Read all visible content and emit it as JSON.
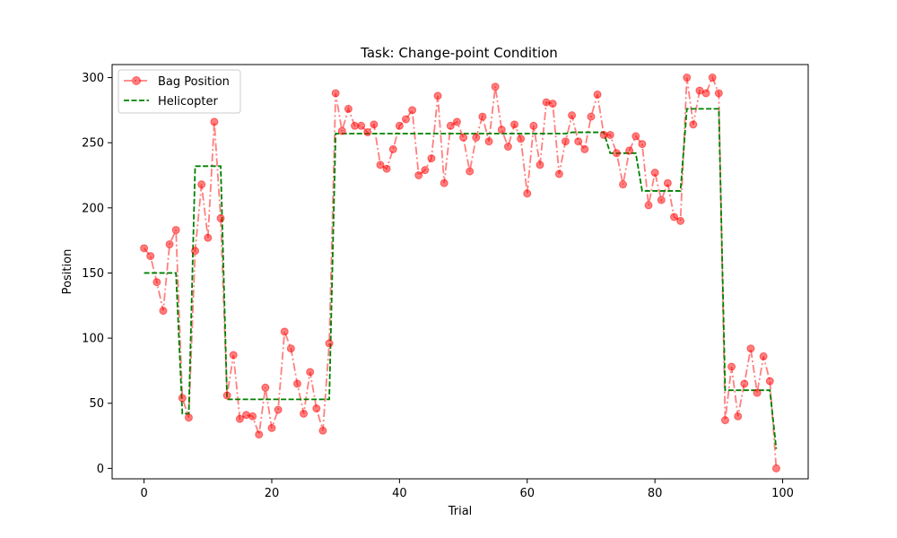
{
  "chart_data": {
    "type": "line",
    "title": "Task: Change-point Condition",
    "xlabel": "Trial",
    "ylabel": "Position",
    "xlim": [
      -5,
      104
    ],
    "ylim": [
      -8,
      310
    ],
    "xticks": [
      0,
      20,
      40,
      60,
      80,
      100
    ],
    "yticks": [
      0,
      50,
      100,
      150,
      200,
      250,
      300
    ],
    "grid": false,
    "legend_position": "top-left",
    "colors": {
      "bag": "#ff0000",
      "helicopter": "#008000"
    },
    "series": [
      {
        "name": "Bag Position",
        "style": "dash-dot with circle markers",
        "x": [
          0,
          1,
          2,
          3,
          4,
          5,
          6,
          7,
          8,
          9,
          10,
          11,
          12,
          13,
          14,
          15,
          16,
          17,
          18,
          19,
          20,
          21,
          22,
          23,
          24,
          25,
          26,
          27,
          28,
          29,
          30,
          31,
          32,
          33,
          34,
          35,
          36,
          37,
          38,
          39,
          40,
          41,
          42,
          43,
          44,
          45,
          46,
          47,
          48,
          49,
          50,
          51,
          52,
          53,
          54,
          55,
          56,
          57,
          58,
          59,
          60,
          61,
          62,
          63,
          64,
          65,
          66,
          67,
          68,
          69,
          70,
          71,
          72,
          73,
          74,
          75,
          76,
          77,
          78,
          79,
          80,
          81,
          82,
          83,
          84,
          85,
          86,
          87,
          88,
          89,
          90,
          91,
          92,
          93,
          94,
          95,
          96,
          97,
          98,
          99
        ],
        "values": [
          169,
          163,
          143,
          121,
          172,
          183,
          54,
          39,
          167,
          218,
          177,
          266,
          192,
          56,
          87,
          38,
          41,
          40,
          26,
          62,
          31,
          45,
          105,
          92,
          65,
          42,
          74,
          46,
          29,
          96,
          288,
          259,
          276,
          263,
          263,
          258,
          264,
          233,
          230,
          245,
          263,
          268,
          275,
          225,
          229,
          238,
          286,
          219,
          263,
          266,
          254,
          228,
          254,
          270,
          251,
          293,
          260,
          247,
          264,
          253,
          211,
          263,
          233,
          281,
          280,
          226,
          251,
          271,
          251,
          245,
          270,
          287,
          256,
          256,
          242,
          218,
          244,
          255,
          249,
          202,
          227,
          206,
          219,
          193,
          190,
          300,
          264,
          290,
          288,
          300,
          288,
          37,
          78,
          40,
          65,
          92,
          58,
          86,
          67,
          0
        ]
      },
      {
        "name": "Helicopter",
        "style": "dashed",
        "x": [
          0,
          1,
          2,
          3,
          4,
          5,
          6,
          7,
          8,
          9,
          10,
          11,
          12,
          13,
          14,
          15,
          16,
          17,
          18,
          19,
          20,
          21,
          22,
          23,
          24,
          25,
          26,
          27,
          28,
          29,
          30,
          31,
          32,
          33,
          34,
          35,
          36,
          37,
          38,
          39,
          40,
          41,
          42,
          43,
          44,
          45,
          46,
          47,
          48,
          49,
          50,
          51,
          52,
          53,
          54,
          55,
          56,
          57,
          58,
          59,
          60,
          61,
          62,
          63,
          64,
          65,
          66,
          67,
          68,
          69,
          70,
          71,
          72,
          73,
          74,
          75,
          76,
          77,
          78,
          79,
          80,
          81,
          82,
          83,
          84,
          85,
          86,
          87,
          88,
          89,
          90,
          91,
          92,
          93,
          94,
          95,
          96,
          97,
          98,
          99
        ],
        "values": [
          150,
          150,
          150,
          150,
          150,
          150,
          42,
          42,
          232,
          232,
          232,
          232,
          232,
          53,
          53,
          53,
          53,
          53,
          53,
          53,
          53,
          53,
          53,
          53,
          53,
          53,
          53,
          53,
          53,
          53,
          257,
          257,
          257,
          257,
          257,
          257,
          257,
          257,
          257,
          257,
          257,
          257,
          257,
          257,
          257,
          257,
          257,
          257,
          257,
          257,
          257,
          257,
          257,
          257,
          257,
          257,
          257,
          257,
          257,
          257,
          257,
          257,
          257,
          257,
          257,
          257,
          257,
          258,
          258,
          258,
          258,
          258,
          258,
          242,
          242,
          242,
          242,
          242,
          213,
          213,
          213,
          213,
          213,
          213,
          213,
          276,
          276,
          276,
          276,
          276,
          276,
          60,
          60,
          60,
          60,
          60,
          60,
          60,
          60,
          15
        ]
      }
    ]
  }
}
